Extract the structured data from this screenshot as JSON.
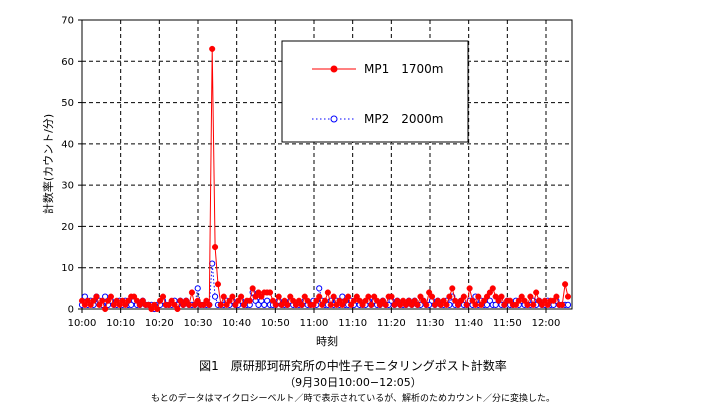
{
  "chart_data": {
    "type": "line",
    "ylabel": "計数率(カウント/分)",
    "xlabel": "時刻",
    "ylim": [
      0,
      70
    ],
    "yticks": [
      0,
      10,
      20,
      30,
      40,
      50,
      60,
      70
    ],
    "xticks": [
      "10:00",
      "10:10",
      "10:20",
      "10:30",
      "10:40",
      "10:50",
      "11:00",
      "11:10",
      "11:20",
      "11:30",
      "11:40",
      "11:50",
      "12:00"
    ],
    "grid": true,
    "legend_position": "top-center",
    "series": [
      {
        "name": "MP1　1700m",
        "color": "#ff0000",
        "marker": "filled-circle",
        "line": "solid",
        "values": [
          2,
          1,
          2,
          1,
          2,
          3,
          1,
          2,
          0,
          2,
          3,
          1,
          2,
          1,
          2,
          1,
          2,
          3,
          3,
          2,
          1,
          2,
          1,
          1,
          0,
          1,
          0,
          2,
          3,
          1,
          1,
          2,
          1,
          0,
          2,
          1,
          2,
          1,
          4,
          1,
          2,
          1,
          1,
          2,
          1,
          63,
          15,
          6,
          1,
          3,
          1,
          2,
          3,
          1,
          2,
          3,
          1,
          2,
          2,
          5,
          3,
          4,
          3,
          4,
          4,
          4,
          2,
          1,
          3,
          1,
          2,
          1,
          3,
          2,
          1,
          2,
          1,
          3,
          2,
          1,
          1,
          2,
          3,
          1,
          2,
          4,
          1,
          3,
          1,
          2,
          1,
          2,
          3,
          1,
          2,
          3,
          2,
          1,
          2,
          3,
          1,
          3,
          2,
          1,
          2,
          1,
          3,
          3,
          1,
          2,
          1,
          2,
          1,
          2,
          1,
          2,
          1,
          3,
          2,
          1,
          4,
          3,
          1,
          2,
          1,
          2,
          1,
          3,
          5,
          2,
          1,
          2,
          3,
          1,
          5,
          2,
          1,
          3,
          1,
          2,
          3,
          4,
          5,
          3,
          2,
          3,
          1,
          2,
          2,
          1,
          1,
          2,
          3,
          2,
          1,
          3,
          1,
          4,
          2,
          1,
          2,
          1,
          2,
          2,
          3,
          1,
          1,
          6,
          3
        ]
      },
      {
        "name": "MP2　2000m",
        "color": "#0000ff",
        "marker": "open-circle",
        "line": "dotted",
        "values": [
          1,
          3,
          1,
          2,
          1,
          3,
          2,
          1,
          3,
          1,
          2,
          1,
          1,
          2,
          1,
          2,
          1,
          1,
          2,
          1,
          1,
          2,
          1,
          1,
          1,
          0,
          1,
          1,
          2,
          1,
          1,
          1,
          2,
          1,
          2,
          1,
          2,
          1,
          1,
          1,
          5,
          1,
          1,
          1,
          1,
          11,
          3,
          1,
          1,
          1,
          2,
          1,
          2,
          1,
          1,
          2,
          1,
          1,
          1,
          4,
          2,
          1,
          2,
          1,
          2,
          1,
          1,
          1,
          2,
          1,
          1,
          1,
          2,
          1,
          1,
          1,
          1,
          2,
          1,
          1,
          2,
          1,
          5,
          2,
          1,
          1,
          2,
          1,
          2,
          1,
          3,
          1,
          1,
          2,
          1,
          2,
          1,
          1,
          1,
          2,
          1,
          2,
          1,
          1,
          2,
          1,
          1,
          2,
          1,
          2,
          1,
          1,
          1,
          2,
          1,
          2,
          1,
          1,
          2,
          1,
          1,
          2,
          1,
          2,
          1,
          1,
          2,
          1,
          3,
          1,
          1,
          2,
          1,
          1,
          2,
          1,
          3,
          1,
          2,
          1,
          1,
          2,
          1,
          1,
          2,
          1,
          1,
          2,
          1,
          1,
          2,
          1,
          2,
          1,
          1,
          1,
          2,
          1,
          2,
          1,
          1,
          2,
          1,
          1,
          2,
          1,
          1,
          1,
          1
        ]
      }
    ]
  },
  "caption": {
    "title": "図1　原研那珂研究所の中性子モニタリングポスト計数率",
    "subtitle": "（9月30日10:00−12:05）",
    "note": "もとのデータはマイクロシーベルト／時で表示されているが、解析のためカウント／分に変換した。"
  }
}
